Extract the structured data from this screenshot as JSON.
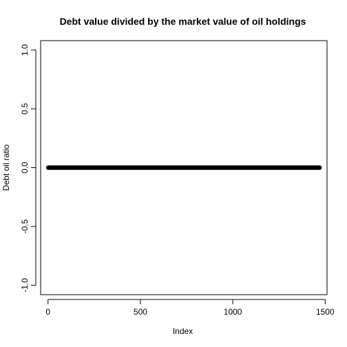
{
  "chart_data": {
    "type": "scatter",
    "title": "Debt value divided by the market value of oil holdings",
    "xlabel": "Index",
    "ylabel": "Debt oil ratio",
    "xlim": [
      -40,
      1510
    ],
    "ylim": [
      -1.08,
      1.08
    ],
    "x_ticks": [
      0,
      500,
      1000,
      1500
    ],
    "x_tick_labels": [
      "0",
      "500",
      "1000",
      "1500"
    ],
    "y_ticks": [
      -1.0,
      -0.5,
      0.0,
      0.5,
      1.0
    ],
    "y_tick_labels": [
      "-1.0",
      "-0.5",
      "0.0",
      "0.5",
      "1.0"
    ],
    "point_count": 1470,
    "constant_y": 0.0,
    "grid": false
  }
}
